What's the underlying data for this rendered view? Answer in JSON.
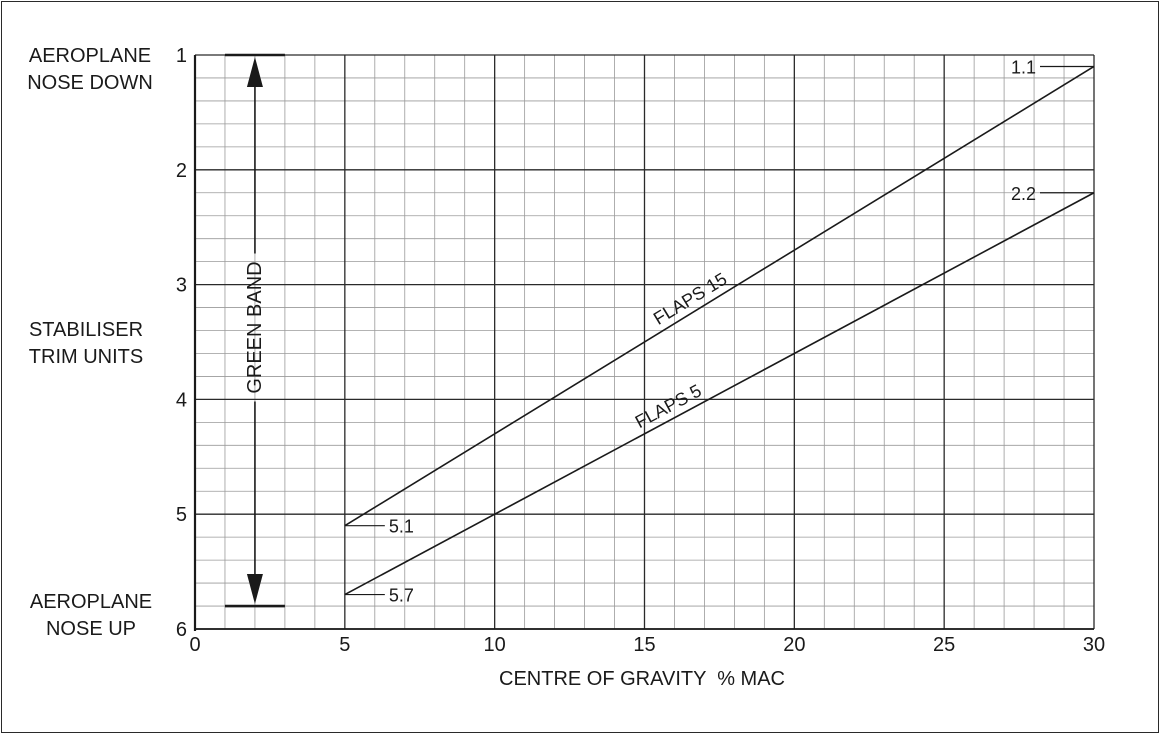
{
  "chart_data": {
    "type": "line",
    "xlabel": "CENTRE OF GRAVITY  % MAC",
    "ylabel": [
      "STABILISER",
      "TRIM UNITS"
    ],
    "y_top_label": [
      "AEROPLANE",
      "NOSE DOWN"
    ],
    "y_bottom_label": [
      "AEROPLANE",
      "NOSE UP"
    ],
    "xlim": [
      0,
      30
    ],
    "ylim": [
      1,
      6
    ],
    "y_inverted": true,
    "x_ticks": [
      "0",
      "5",
      "10",
      "15",
      "20",
      "25",
      "30"
    ],
    "y_ticks": [
      "1",
      "2",
      "3",
      "4",
      "5",
      "6"
    ],
    "grid": true,
    "series": [
      {
        "name": "FLAPS 15",
        "x": [
          5,
          30
        ],
        "y": [
          5.1,
          1.1
        ],
        "end_labels": [
          "5.1",
          "1.1"
        ]
      },
      {
        "name": "FLAPS 5",
        "x": [
          5,
          30
        ],
        "y": [
          5.7,
          2.2
        ],
        "end_labels": [
          "5.7",
          "2.2"
        ]
      }
    ],
    "green_band": {
      "label": "GREEN BAND",
      "x": 2,
      "y_from": 1,
      "y_to": 5.8
    }
  }
}
